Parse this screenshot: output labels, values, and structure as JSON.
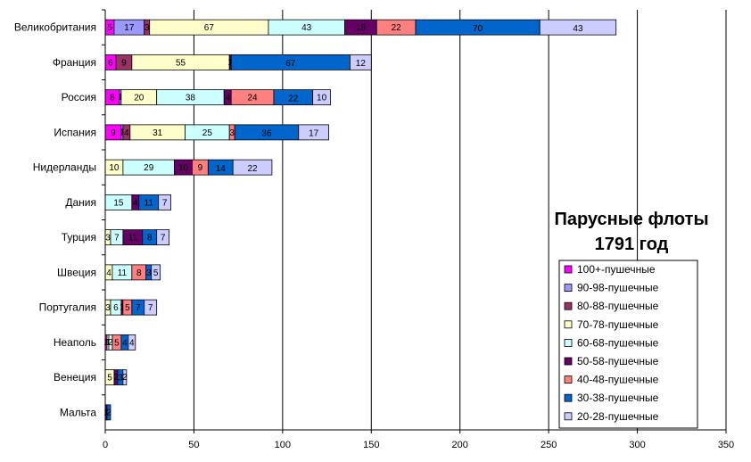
{
  "chart_data": {
    "type": "bar",
    "orientation": "horizontal",
    "stacked": true,
    "title_lines": [
      "Парусные флоты",
      "1791 год"
    ],
    "xlim": [
      0,
      350
    ],
    "x_ticks": [
      0,
      50,
      100,
      150,
      200,
      250,
      300,
      350
    ],
    "grid": "vertical",
    "legend_position": "right",
    "categories": [
      "Великобритания",
      "Франция",
      "Россия",
      "Испания",
      "Нидерланды",
      "Дания",
      "Турция",
      "Швеция",
      "Португалия",
      "Неаполь",
      "Венеция",
      "Мальта"
    ],
    "series": [
      {
        "name": "100+-пушечные",
        "color": "#ff00ff",
        "values": [
          5,
          6,
          8,
          9,
          0,
          0,
          0,
          0,
          0,
          1,
          0,
          0
        ]
      },
      {
        "name": "90-98-пушечные",
        "color": "#9999ff",
        "values": [
          17,
          0,
          1,
          1,
          0,
          0,
          0,
          0,
          0,
          0,
          0,
          0
        ]
      },
      {
        "name": "80-88-пушечные",
        "color": "#993366",
        "values": [
          3,
          9,
          0,
          4,
          0,
          0,
          0,
          0,
          0,
          0,
          0,
          0
        ]
      },
      {
        "name": "70-78-пушечные",
        "color": "#ffffcc",
        "values": [
          67,
          55,
          20,
          31,
          10,
          0,
          3,
          4,
          3,
          1,
          5,
          0
        ]
      },
      {
        "name": "60-68-пушечные",
        "color": "#ccffff",
        "values": [
          43,
          0,
          38,
          25,
          29,
          15,
          7,
          11,
          6,
          2,
          0,
          0
        ]
      },
      {
        "name": "50-58-пушечные",
        "color": "#660066",
        "values": [
          18,
          1,
          4,
          0,
          10,
          4,
          11,
          0,
          1,
          0,
          2,
          1
        ]
      },
      {
        "name": "40-48-пушечные",
        "color": "#ff8080",
        "values": [
          22,
          0,
          24,
          3,
          9,
          0,
          0,
          8,
          5,
          5,
          0,
          0
        ]
      },
      {
        "name": "30-38-пушечные",
        "color": "#0066cc",
        "values": [
          70,
          67,
          22,
          36,
          14,
          11,
          8,
          3,
          7,
          4,
          3,
          2
        ]
      },
      {
        "name": "20-28-пушечные",
        "color": "#ccccff",
        "values": [
          43,
          12,
          10,
          17,
          22,
          7,
          7,
          5,
          7,
          4,
          2,
          0
        ]
      }
    ],
    "displayed_labels": [
      [
        "5",
        "17",
        "3",
        "67",
        "43",
        "18",
        "22",
        "70",
        "43"
      ],
      [
        "6",
        "",
        "9",
        "55",
        "",
        "1",
        "",
        "67",
        "12"
      ],
      [
        "8",
        "1",
        "",
        "20",
        "38",
        "4",
        "24",
        "22",
        "10"
      ],
      [
        "9",
        "1",
        "4",
        "31",
        "25",
        "",
        "3",
        "36",
        "17"
      ],
      [
        "",
        "",
        "",
        "10",
        "29",
        "10",
        "9",
        "14",
        "22"
      ],
      [
        "",
        "",
        "",
        "",
        "15",
        "4",
        "",
        "11",
        "7"
      ],
      [
        "",
        "",
        "",
        "3",
        "7",
        "11",
        "",
        "8",
        "7"
      ],
      [
        "",
        "",
        "",
        "4",
        "11",
        "",
        "8",
        "3",
        "5"
      ],
      [
        "",
        "",
        "",
        "3",
        "6",
        "1",
        "5",
        "7",
        "7"
      ],
      [
        "1",
        "",
        "",
        "1",
        "2",
        "",
        "5",
        "4",
        "4"
      ],
      [
        "",
        "",
        "",
        "5",
        "",
        "2",
        "",
        "3",
        "2"
      ],
      [
        "",
        "",
        "",
        "",
        "",
        "1",
        "",
        "2",
        ""
      ]
    ]
  }
}
